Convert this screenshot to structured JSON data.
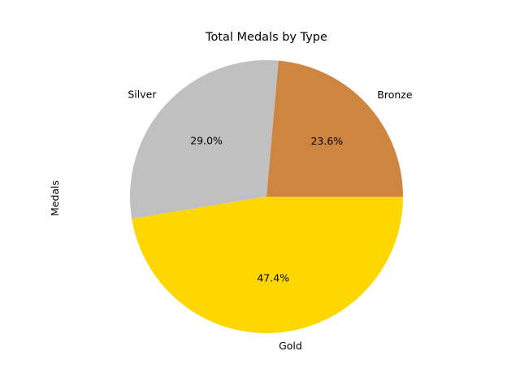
{
  "chart_data": {
    "type": "pie",
    "title": "Total Medals by Type",
    "ylabel": "Medals",
    "start_angle_deg": 0,
    "direction": "counterclockwise",
    "slices": [
      {
        "label": "Bronze",
        "value": 23.6,
        "percent_label": "23.6%",
        "color": "#CD853F"
      },
      {
        "label": "Silver",
        "value": 29.0,
        "percent_label": "29.0%",
        "color": "#C0C0C0"
      },
      {
        "label": "Gold",
        "value": 47.4,
        "percent_label": "47.4%",
        "color": "#FFD700"
      }
    ]
  }
}
